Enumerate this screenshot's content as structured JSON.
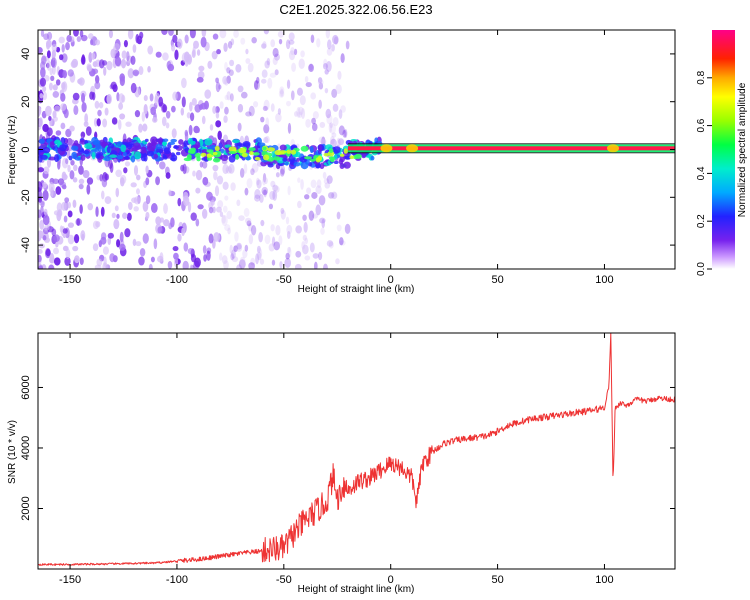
{
  "title": "C2E1.2025.322.06.56.E23",
  "chart_data": [
    {
      "type": "heatmap",
      "xlabel": "Height of straight line (km)",
      "ylabel": "Frequency (Hz)",
      "xlim": [
        -165,
        133
      ],
      "ylim": [
        -50,
        50
      ],
      "x_ticks": [
        -150,
        -100,
        -50,
        0,
        50,
        100
      ],
      "y_ticks": [
        -40,
        -20,
        0,
        20,
        40
      ],
      "colorbar": {
        "label": "Normalized spectral amplitude",
        "range": [
          0.0,
          1.0
        ],
        "ticks": [
          0.0,
          0.2,
          0.4,
          0.6,
          0.8
        ],
        "tick_labels": [
          "0.0",
          "0.2",
          "0.4",
          "0.6",
          "0.8"
        ]
      },
      "features": {
        "carrier_line_freq_hz": 0.5,
        "carrier_line_x_range_km": [
          -20,
          133
        ],
        "noise_region_x_range_km": [
          -165,
          -45
        ]
      }
    },
    {
      "type": "line",
      "xlabel": "Height of straight line (km)",
      "ylabel": "SNR (10 * v/v)",
      "xlim": [
        -165,
        133
      ],
      "ylim": [
        0,
        7800
      ],
      "x_ticks": [
        -150,
        -100,
        -50,
        0,
        50,
        100
      ],
      "y_ticks": [
        2000,
        4000,
        6000
      ],
      "color": "#ee3333",
      "series": [
        {
          "name": "SNR",
          "x": [
            -165,
            -150,
            -130,
            -110,
            -100,
            -90,
            -80,
            -70,
            -60,
            -50,
            -45,
            -40,
            -35,
            -30,
            -27,
            -25,
            -22,
            -20,
            -15,
            -10,
            -5,
            0,
            5,
            10,
            12,
            15,
            20,
            25,
            30,
            35,
            40,
            45,
            50,
            55,
            60,
            65,
            70,
            75,
            80,
            85,
            90,
            95,
            100,
            102,
            103,
            104,
            105,
            106,
            108,
            110,
            115,
            120,
            125,
            133
          ],
          "y": [
            150,
            150,
            170,
            200,
            260,
            320,
            420,
            520,
            600,
            700,
            1200,
            1600,
            1900,
            2200,
            3100,
            2300,
            2800,
            2600,
            2900,
            3000,
            3250,
            3500,
            3350,
            3000,
            2200,
            3500,
            3900,
            4150,
            4250,
            4300,
            4350,
            4400,
            4550,
            4750,
            4850,
            4950,
            5000,
            5050,
            5100,
            5150,
            5200,
            5250,
            5350,
            6000,
            7800,
            2800,
            5300,
            5400,
            5500,
            5400,
            5600,
            5550,
            5650,
            5600
          ]
        }
      ]
    }
  ]
}
